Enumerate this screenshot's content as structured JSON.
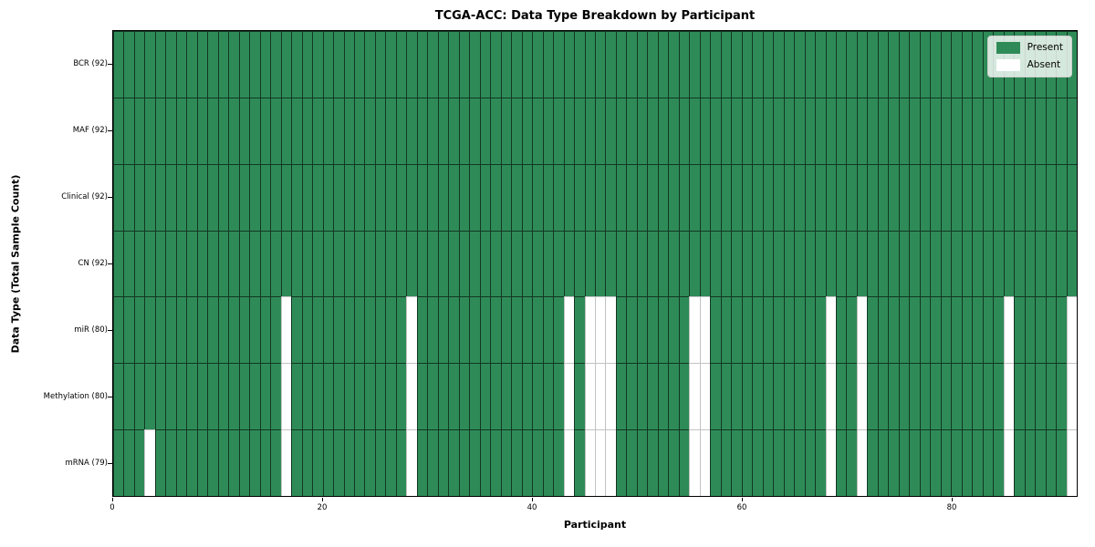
{
  "chart_data": {
    "type": "heatmap",
    "title": "TCGA-ACC: Data Type Breakdown by Participant",
    "xlabel": "Participant",
    "ylabel": "Data Type (Total Sample Count)",
    "n_participants": 92,
    "x_ticks": [
      0,
      20,
      40,
      60,
      80
    ],
    "cell_states": [
      "Present",
      "Absent"
    ],
    "colors": {
      "present": "#2e8b57",
      "absent": "#ffffff"
    },
    "legend": [
      {
        "label": "Present",
        "color": "#2e8b57"
      },
      {
        "label": "Absent",
        "color": "#ffffff"
      }
    ],
    "rows": [
      {
        "label": "BCR (92)",
        "data_type": "BCR",
        "present_count": 92,
        "absent_participants": []
      },
      {
        "label": "MAF (92)",
        "data_type": "MAF",
        "present_count": 92,
        "absent_participants": []
      },
      {
        "label": "Clinical (92)",
        "data_type": "Clinical",
        "present_count": 92,
        "absent_participants": []
      },
      {
        "label": "CN (92)",
        "data_type": "CN",
        "present_count": 92,
        "absent_participants": []
      },
      {
        "label": "miR (80)",
        "data_type": "miR",
        "present_count": 80,
        "absent_participants": [
          16,
          28,
          43,
          45,
          46,
          47,
          55,
          56,
          68,
          71,
          85,
          91
        ]
      },
      {
        "label": "Methylation (80)",
        "data_type": "Methylation",
        "present_count": 80,
        "absent_participants": [
          16,
          28,
          43,
          45,
          46,
          47,
          55,
          56,
          68,
          71,
          85,
          91
        ]
      },
      {
        "label": "mRNA (79)",
        "data_type": "mRNA",
        "present_count": 79,
        "absent_participants": [
          3,
          16,
          28,
          43,
          45,
          46,
          47,
          55,
          56,
          68,
          71,
          85,
          91
        ]
      }
    ]
  }
}
